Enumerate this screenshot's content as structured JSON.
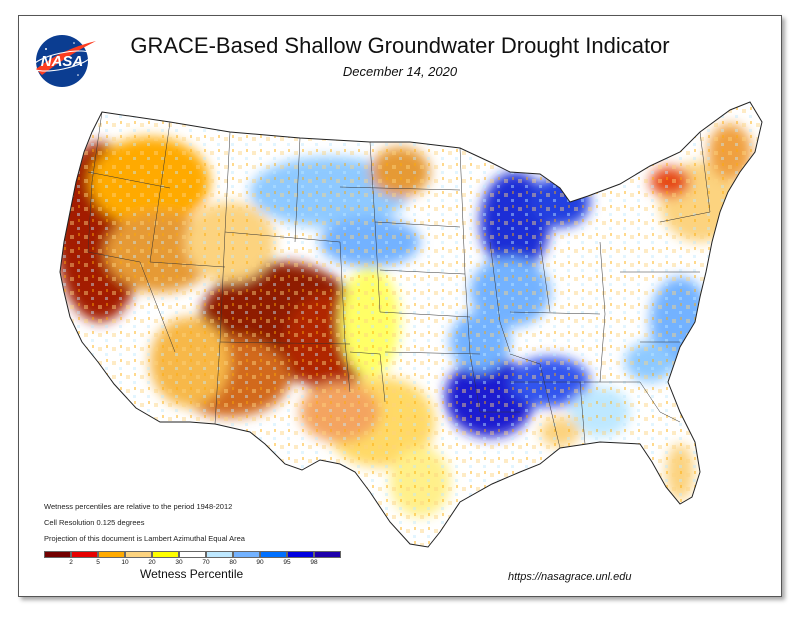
{
  "header": {
    "title": "GRACE-Based Shallow Groundwater Drought Indicator",
    "date": "December 14, 2020",
    "logo_text": "NASA"
  },
  "notes": {
    "line1": "Wetness percentiles are relative to the period 1948-2012",
    "line2": "Cell Resolution 0.125 degrees",
    "line3": "Projection of this document is Lambert Azimuthal Equal Area"
  },
  "legend": {
    "title": "Wetness Percentile",
    "colors": [
      "#730000",
      "#e60000",
      "#ffaa00",
      "#fcd37f",
      "#ffff00",
      "#ffffff",
      "#bee8ff",
      "#73b2ff",
      "#0070ff",
      "#0000e0",
      "#1e00ab"
    ],
    "ticks": [
      "2",
      "5",
      "10",
      "20",
      "30",
      "70",
      "80",
      "90",
      "95",
      "98"
    ]
  },
  "footer": {
    "url": "https://nasagrace.unl.edu"
  }
}
